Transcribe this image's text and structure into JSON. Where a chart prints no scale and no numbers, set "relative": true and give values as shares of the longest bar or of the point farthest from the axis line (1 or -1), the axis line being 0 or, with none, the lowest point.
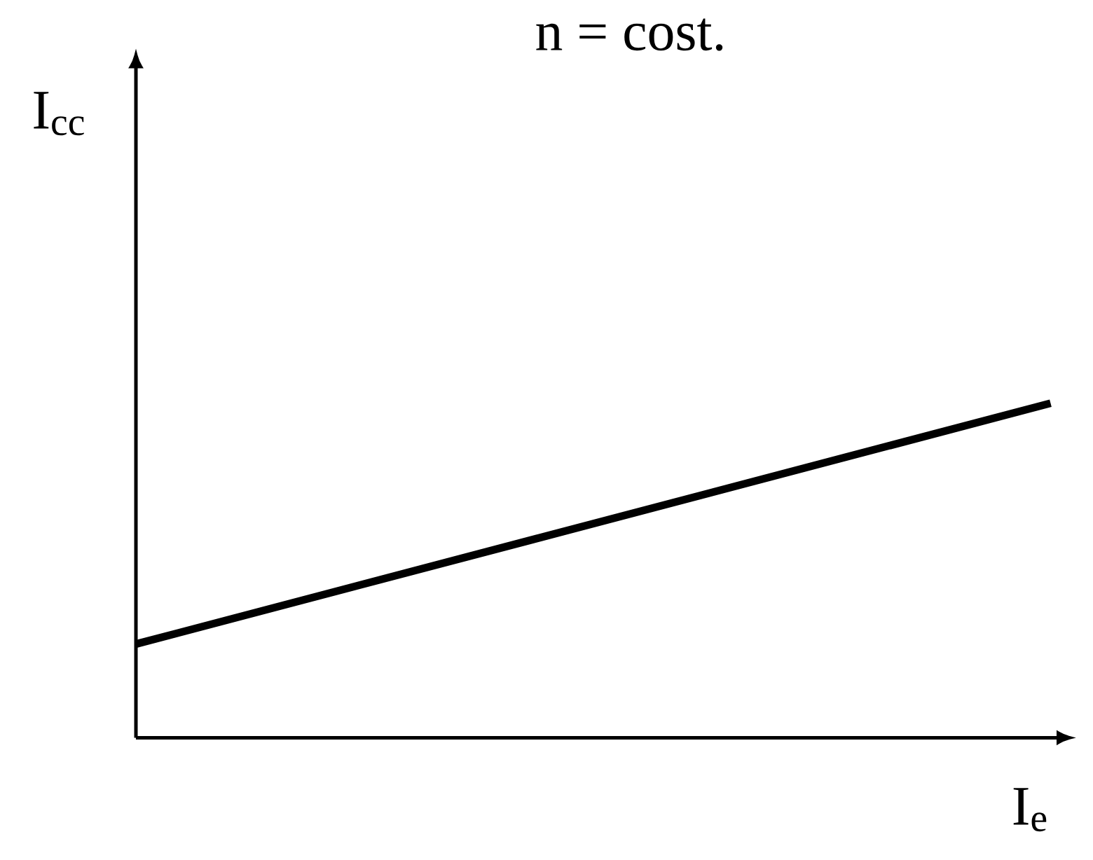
{
  "chart_data": {
    "type": "line",
    "title": "n = cost.",
    "xlabel": "I$_{e}$",
    "ylabel": "I$_{cc}$",
    "relative": true,
    "categories": [
      null,
      null
    ],
    "series": [
      {
        "color": "#000000",
        "values": [
          0.28,
          1
        ]
      }
    ]
  }
}
